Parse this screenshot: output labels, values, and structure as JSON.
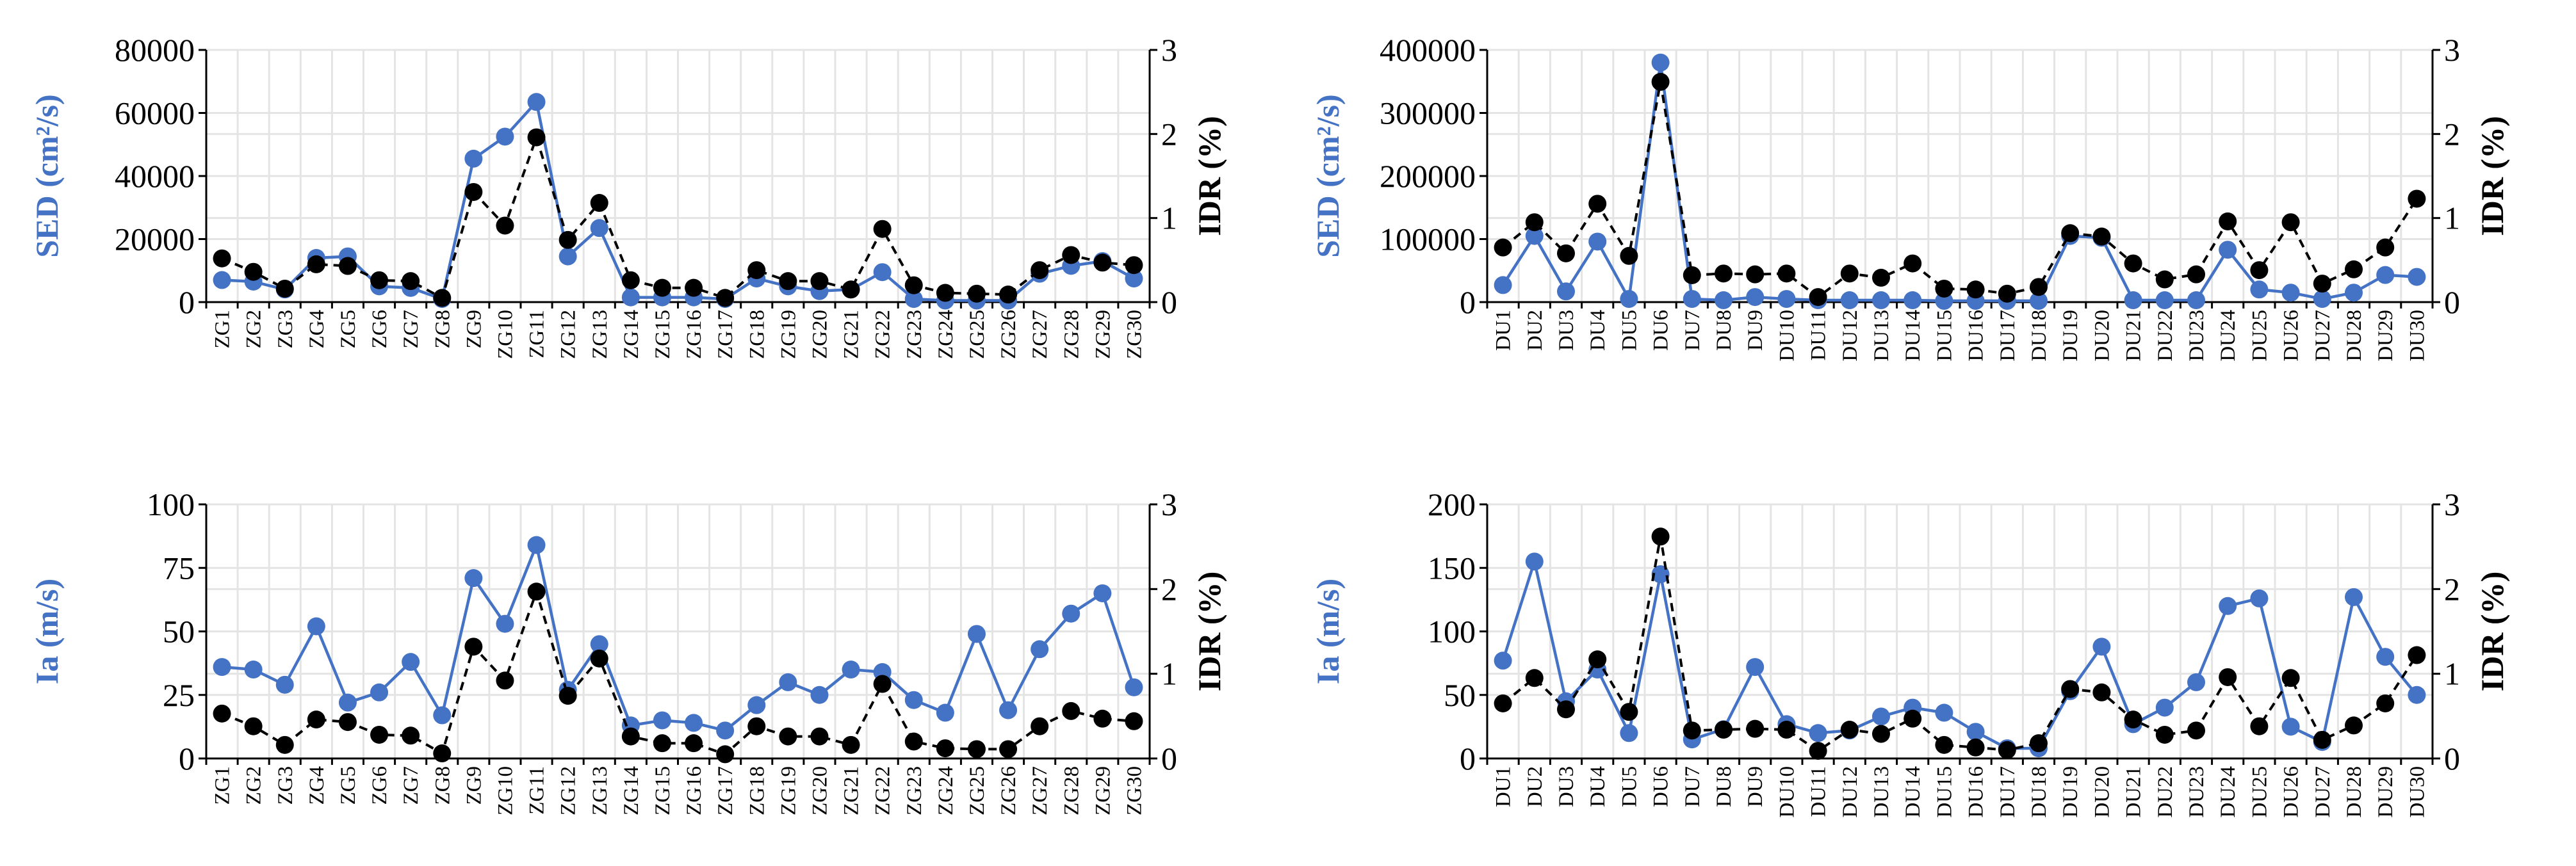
{
  "colors": {
    "blue": "#4472C4",
    "black": "#000000",
    "grid": "#e4e4e4"
  },
  "chart_data": [
    {
      "type": "line",
      "id": "zg-sed",
      "y_left_label": "SED (cm²/s)",
      "y_right_label": "IDR (%)",
      "ylim_left": [
        0,
        80000
      ],
      "yticks_left": [
        "0",
        "20000",
        "40000",
        "60000",
        "80000"
      ],
      "ylim_right": [
        0,
        3
      ],
      "yticks_right": [
        "0",
        "1",
        "2",
        "3"
      ],
      "categories": [
        "ZG1",
        "ZG2",
        "ZG3",
        "ZG4",
        "ZG5",
        "ZG6",
        "ZG7",
        "ZG8",
        "ZG9",
        "ZG10",
        "ZG11",
        "ZG12",
        "ZG13",
        "ZG14",
        "ZG15",
        "ZG16",
        "ZG17",
        "ZG18",
        "ZG19",
        "ZG20",
        "ZG21",
        "ZG22",
        "ZG23",
        "ZG24",
        "ZG25",
        "ZG26",
        "ZG27",
        "ZG28",
        "ZG29",
        "ZG30"
      ],
      "series": [
        {
          "name": "SED",
          "axis": "left",
          "style": "solid",
          "color": "#4472C4",
          "values": [
            7000,
            6500,
            4000,
            14000,
            14500,
            5000,
            4500,
            1000,
            45500,
            52500,
            63500,
            14500,
            23500,
            1500,
            1500,
            1500,
            1000,
            7500,
            5000,
            3500,
            4000,
            9500,
            1000,
            500,
            500,
            500,
            9000,
            11500,
            13000,
            7500
          ]
        },
        {
          "name": "IDR",
          "axis": "right",
          "style": "dashed",
          "color": "#000000",
          "values": [
            0.52,
            0.36,
            0.16,
            0.45,
            0.43,
            0.26,
            0.25,
            0.05,
            1.31,
            0.91,
            1.96,
            0.74,
            1.18,
            0.26,
            0.17,
            0.17,
            0.05,
            0.38,
            0.25,
            0.25,
            0.15,
            0.87,
            0.2,
            0.11,
            0.1,
            0.09,
            0.38,
            0.56,
            0.47,
            0.44
          ]
        }
      ]
    },
    {
      "type": "line",
      "id": "du-sed",
      "y_left_label": "SED (cm²/s)",
      "y_right_label": "IDR (%)",
      "ylim_left": [
        0,
        400000
      ],
      "yticks_left": [
        "0",
        "100000",
        "200000",
        "300000",
        "400000"
      ],
      "ylim_right": [
        0,
        3
      ],
      "yticks_right": [
        "0",
        "1",
        "2",
        "3"
      ],
      "categories": [
        "DU1",
        "DU2",
        "DU3",
        "DU4",
        "DU5",
        "DU6",
        "DU7",
        "DU8",
        "DU9",
        "DU10",
        "DU11",
        "DU12",
        "DU13",
        "DU14",
        "DU15",
        "DU16",
        "DU17",
        "DU18",
        "DU19",
        "DU20",
        "DU21",
        "DU22",
        "DU23",
        "DU24",
        "DU25",
        "DU26",
        "DU27",
        "DU28",
        "DU29",
        "DU30"
      ],
      "series": [
        {
          "name": "SED",
          "axis": "left",
          "style": "solid",
          "color": "#4472C4",
          "values": [
            27000,
            105000,
            17000,
            96000,
            5000,
            380000,
            5000,
            3000,
            8000,
            5000,
            3000,
            3000,
            3000,
            3000,
            2000,
            2000,
            2000,
            2000,
            105000,
            102000,
            3000,
            3000,
            3000,
            83000,
            20000,
            15000,
            5000,
            15000,
            43000,
            40000
          ]
        },
        {
          "name": "IDR",
          "axis": "right",
          "style": "dashed",
          "color": "#000000",
          "values": [
            0.65,
            0.95,
            0.58,
            1.17,
            0.55,
            2.62,
            0.32,
            0.34,
            0.33,
            0.34,
            0.06,
            0.34,
            0.29,
            0.46,
            0.16,
            0.15,
            0.1,
            0.18,
            0.82,
            0.78,
            0.46,
            0.27,
            0.33,
            0.96,
            0.38,
            0.95,
            0.22,
            0.39,
            0.65,
            1.23
          ]
        }
      ]
    },
    {
      "type": "line",
      "id": "zg-ia",
      "y_left_label": "Ia (m/s)",
      "y_right_label": "IDR (%)",
      "ylim_left": [
        0,
        100
      ],
      "yticks_left": [
        "0",
        "25",
        "50",
        "75",
        "100"
      ],
      "ylim_right": [
        0,
        3
      ],
      "yticks_right": [
        "0",
        "1",
        "2",
        "3"
      ],
      "categories": [
        "ZG1",
        "ZG2",
        "ZG3",
        "ZG4",
        "ZG5",
        "ZG6",
        "ZG7",
        "ZG8",
        "ZG9",
        "ZG10",
        "ZG11",
        "ZG12",
        "ZG13",
        "ZG14",
        "ZG15",
        "ZG16",
        "ZG17",
        "ZG18",
        "ZG19",
        "ZG20",
        "ZG21",
        "ZG22",
        "ZG23",
        "ZG24",
        "ZG25",
        "ZG26",
        "ZG27",
        "ZG28",
        "ZG29",
        "ZG30"
      ],
      "series": [
        {
          "name": "Ia",
          "axis": "left",
          "style": "solid",
          "color": "#4472C4",
          "values": [
            36,
            35,
            29,
            52,
            22,
            26,
            38,
            17,
            71,
            53,
            84,
            27,
            45,
            13,
            15,
            14,
            11,
            21,
            30,
            25,
            35,
            34,
            23,
            18,
            49,
            19,
            43,
            57,
            65,
            28
          ]
        },
        {
          "name": "IDR",
          "axis": "right",
          "style": "dashed",
          "color": "#000000",
          "values": [
            0.53,
            0.38,
            0.16,
            0.46,
            0.43,
            0.28,
            0.27,
            0.06,
            1.32,
            0.92,
            1.97,
            0.74,
            1.18,
            0.26,
            0.18,
            0.18,
            0.05,
            0.38,
            0.26,
            0.26,
            0.16,
            0.88,
            0.2,
            0.12,
            0.11,
            0.11,
            0.38,
            0.56,
            0.47,
            0.44
          ]
        }
      ]
    },
    {
      "type": "line",
      "id": "du-ia",
      "y_left_label": "Ia (m/s)",
      "y_right_label": "IDR (%)",
      "ylim_left": [
        0,
        200
      ],
      "yticks_left": [
        "0",
        "50",
        "100",
        "150",
        "200"
      ],
      "ylim_right": [
        0,
        3
      ],
      "yticks_right": [
        "0",
        "1",
        "2",
        "3"
      ],
      "categories": [
        "DU1",
        "DU2",
        "DU3",
        "DU4",
        "DU5",
        "DU6",
        "DU7",
        "DU8",
        "DU9",
        "DU10",
        "DU11",
        "DU12",
        "DU13",
        "DU14",
        "DU15",
        "DU16",
        "DU17",
        "DU18",
        "DU19",
        "DU20",
        "DU21",
        "DU22",
        "DU23",
        "DU24",
        "DU25",
        "DU26",
        "DU27",
        "DU28",
        "DU29",
        "DU30"
      ],
      "series": [
        {
          "name": "Ia",
          "axis": "left",
          "style": "solid",
          "color": "#4472C4",
          "values": [
            77,
            155,
            45,
            70,
            20,
            145,
            15,
            23,
            72,
            27,
            20,
            22,
            33,
            40,
            36,
            21,
            8,
            8,
            53,
            88,
            27,
            40,
            60,
            120,
            126,
            25,
            13,
            127,
            80,
            50
          ]
        },
        {
          "name": "IDR",
          "axis": "right",
          "style": "dashed",
          "color": "#000000",
          "values": [
            0.65,
            0.95,
            0.58,
            1.17,
            0.55,
            2.62,
            0.33,
            0.34,
            0.35,
            0.34,
            0.09,
            0.34,
            0.29,
            0.47,
            0.16,
            0.13,
            0.1,
            0.18,
            0.82,
            0.78,
            0.46,
            0.28,
            0.33,
            0.96,
            0.38,
            0.95,
            0.22,
            0.39,
            0.65,
            1.22
          ]
        }
      ]
    }
  ]
}
